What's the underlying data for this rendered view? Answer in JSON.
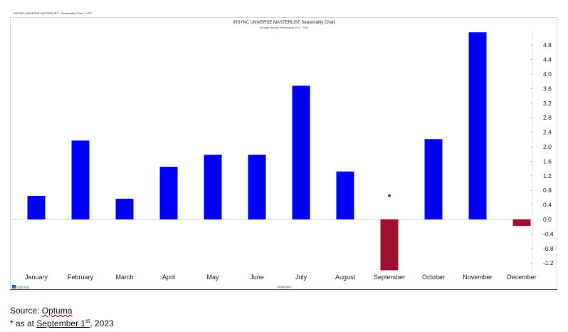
{
  "header_small": "INSYNC UNIVERSE MASTERLIST · Seasonality Chart · USD",
  "chart_data": {
    "type": "bar",
    "title": "INSYNC UNIVERSE MASTERLIST Seasonality Chart",
    "subtitle": "Average Monthly Performance 2014 - 2023",
    "categories": [
      "January",
      "February",
      "March",
      "April",
      "May",
      "June",
      "July",
      "August",
      "September",
      "October",
      "November",
      "December"
    ],
    "values": [
      0.65,
      2.17,
      0.57,
      1.45,
      1.78,
      1.78,
      3.68,
      1.32,
      -1.4,
      2.21,
      5.15,
      -0.18
    ],
    "colors": {
      "positive": "#0000ff",
      "negative": "#a01030"
    },
    "marker": {
      "category": "September",
      "value": 0.66,
      "color": "#1a4fa0"
    },
    "ylim": [
      -1.4,
      5.2
    ],
    "y_ticks": [
      4.8,
      4.4,
      4.0,
      3.6,
      3.2,
      2.8,
      2.4,
      2.0,
      1.6,
      1.2,
      0.8,
      0.4,
      0.0,
      -0.4,
      -0.8,
      -1.2
    ],
    "y_tick_labels": [
      "4.8",
      "4.4",
      "4.0",
      "3.6",
      "3.2",
      "2.8",
      "2.4",
      "2.0",
      "1.6",
      "1.2",
      "0.8",
      "0.4",
      "0.0",
      "-0.4",
      "-0.8",
      "-1.2"
    ],
    "xlabel": "",
    "ylabel": "",
    "grid": false,
    "footer_logo": "Optuma",
    "footer_date": "04 Sep 2023"
  },
  "notes": {
    "source_prefix": "Source: ",
    "source_name": "Optuma",
    "asof_prefix": "* as at ",
    "asof_month_day": "September 1",
    "asof_superscript": "st",
    "asof_year": ", 2023"
  }
}
